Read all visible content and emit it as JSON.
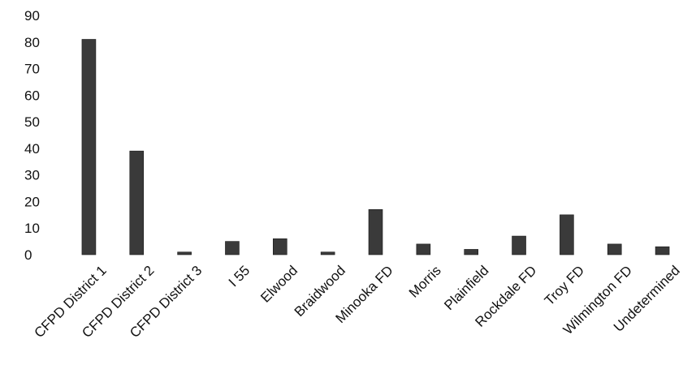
{
  "chart_data": {
    "type": "bar",
    "title": "",
    "xlabel": "",
    "ylabel": "",
    "ylim": [
      0,
      90
    ],
    "yticks": [
      0,
      10,
      20,
      30,
      40,
      50,
      60,
      70,
      80,
      90
    ],
    "grid": false,
    "legend": "none",
    "bar_color": "#3a3a3a",
    "categories": [
      "CFPD District 1",
      "CFPD District 2",
      "CFPD District 3",
      "I 55",
      "Elwood",
      "Braidwood",
      "Minooka FD",
      "Morris",
      "Plainfield",
      "Rockdale FD",
      "Troy FD",
      "Wilmington FD",
      "Undetermined"
    ],
    "values": [
      81,
      39,
      1,
      5,
      6,
      1,
      17,
      4,
      2,
      7,
      15,
      4,
      3
    ]
  }
}
